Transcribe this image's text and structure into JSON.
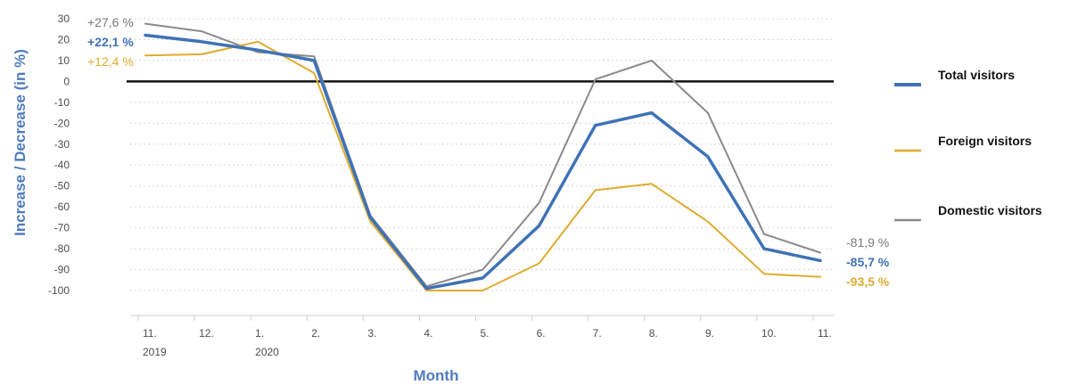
{
  "chart_data": {
    "type": "line",
    "xlabel": "Month",
    "ylabel": "Increase / Decrease (in %)",
    "ylim": [
      -100,
      30
    ],
    "yticks": [
      30,
      20,
      10,
      0,
      -10,
      -20,
      -30,
      -40,
      -50,
      -60,
      -70,
      -80,
      -90,
      -100
    ],
    "categories": [
      "11.",
      "12.",
      "1.",
      "2.",
      "3.",
      "4.",
      "5.",
      "6.",
      "7.",
      "8.",
      "9.",
      "10.",
      "11."
    ],
    "category_sublabels": [
      "2019",
      "",
      "2020",
      "",
      "",
      "",
      "",
      "",
      "",
      "",
      "",
      "",
      ""
    ],
    "grid": "horizontal dotted",
    "zero_line": true,
    "legend_position": "right",
    "series": [
      {
        "name": "Total visitors",
        "color": "#3f72b6",
        "width": 3.5,
        "values": [
          22.1,
          19,
          15,
          10,
          -65,
          -99,
          -94,
          -69,
          -21,
          -15,
          -36,
          -80,
          -85.7
        ]
      },
      {
        "name": "Foreign visitors",
        "color": "#e0ac2e",
        "width": 2,
        "values": [
          12.4,
          13,
          19,
          4,
          -67,
          -100,
          -100,
          -87,
          -52,
          -49,
          -67,
          -92,
          -93.5
        ]
      },
      {
        "name": "Domestic visitors",
        "color": "#8a8a8a",
        "width": 2,
        "values": [
          27.6,
          24,
          14,
          12,
          -64,
          -98,
          -90,
          -58,
          1,
          10,
          -15,
          -73,
          -81.9
        ]
      }
    ],
    "annotations": {
      "start": [
        {
          "text": "+27,6 %",
          "series": 2,
          "color": "#7a7a7a",
          "bold": false
        },
        {
          "text": "+22,1 %",
          "series": 0,
          "color": "#3f72b6",
          "bold": true
        },
        {
          "text": "+12,4 %",
          "series": 1,
          "color": "#e0ac2e",
          "bold": false
        }
      ],
      "end": [
        {
          "text": "-81,9 %",
          "series": 2,
          "color": "#7a7a7a",
          "bold": false
        },
        {
          "text": "-85,7 %",
          "series": 0,
          "color": "#3f72b6",
          "bold": true
        },
        {
          "text": "-93,5 %",
          "series": 1,
          "color": "#e0ac2e",
          "bold": true
        }
      ]
    }
  }
}
